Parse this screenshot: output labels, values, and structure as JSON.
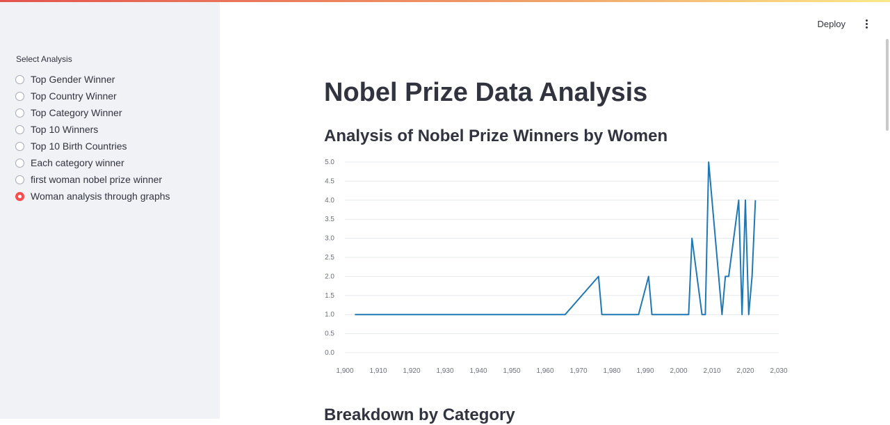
{
  "sidebar": {
    "radio_label": "Select Analysis",
    "options": [
      {
        "label": "Top Gender Winner",
        "selected": false
      },
      {
        "label": "Top Country Winner",
        "selected": false
      },
      {
        "label": "Top Category Winner",
        "selected": false
      },
      {
        "label": "Top 10 Winners",
        "selected": false
      },
      {
        "label": "Top 10 Birth Countries",
        "selected": false
      },
      {
        "label": "Each category winner",
        "selected": false
      },
      {
        "label": "first woman nobel prize winner",
        "selected": false
      },
      {
        "label": "Woman analysis through graphs",
        "selected": true
      }
    ]
  },
  "header": {
    "deploy_label": "Deploy",
    "menu_icon": "kebab-menu-icon"
  },
  "main": {
    "title": "Nobel Prize Data Analysis",
    "section_title": "Analysis of Nobel Prize Winners by Women",
    "next_section_title": "Breakdown by Category"
  },
  "colors": {
    "accent": "#ff4b4b",
    "line": "#1f77b4",
    "sidebar_bg": "#f0f2f6"
  },
  "chart_data": {
    "type": "line",
    "title": "",
    "xlabel": "",
    "ylabel": "",
    "xlim": [
      1900,
      2030
    ],
    "ylim": [
      0,
      5
    ],
    "x_ticks": [
      1900,
      1910,
      1920,
      1930,
      1940,
      1950,
      1960,
      1970,
      1980,
      1990,
      2000,
      2010,
      2020,
      2030
    ],
    "x_tick_labels": [
      "1,900",
      "1,910",
      "1,920",
      "1,930",
      "1,940",
      "1,950",
      "1,960",
      "1,970",
      "1,980",
      "1,990",
      "2,000",
      "2,010",
      "2,020",
      "2,030"
    ],
    "y_ticks": [
      0,
      0.5,
      1,
      1.5,
      2,
      2.5,
      3,
      3.5,
      4,
      4.5,
      5
    ],
    "y_tick_labels": [
      "0.0",
      "0.5",
      "1.0",
      "1.5",
      "2.0",
      "2.5",
      "3.0",
      "3.5",
      "4.0",
      "4.5",
      "5.0"
    ],
    "grid": true,
    "series": [
      {
        "x": [
          1903,
          1905,
          1909,
          1911,
          1926,
          1928,
          1931,
          1935,
          1938,
          1945,
          1946,
          1947,
          1963,
          1964,
          1966,
          1976,
          1977,
          1979,
          1982,
          1983,
          1986,
          1988,
          1991,
          1992,
          1995,
          1997,
          2000,
          2003,
          2004,
          2007,
          2008,
          2009,
          2011,
          2013,
          2014,
          2015,
          2018,
          2019,
          2020,
          2021,
          2022,
          2023
        ],
        "y": [
          1,
          1,
          1,
          1,
          1,
          1,
          1,
          1,
          1,
          1,
          1,
          1,
          1,
          1,
          1,
          2,
          1,
          1,
          1,
          1,
          1,
          1,
          2,
          1,
          1,
          1,
          1,
          1,
          3,
          1,
          1,
          5,
          3,
          1,
          2,
          2,
          4,
          1,
          4,
          1,
          2,
          4
        ]
      }
    ]
  }
}
